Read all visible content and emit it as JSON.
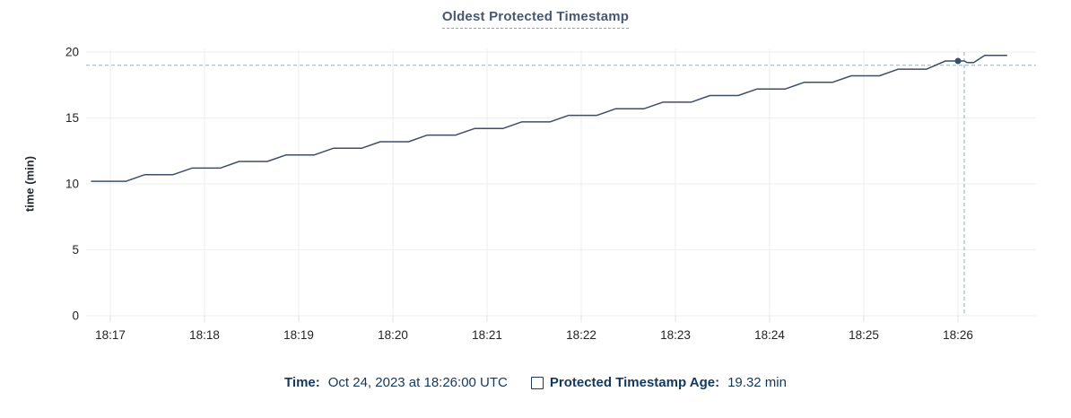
{
  "title": "Oldest Protected Timestamp",
  "y_axis": {
    "label": "time (min)"
  },
  "legend": {
    "time_label": "Time:",
    "time_value": "Oct 24, 2023 at 18:26:00 UTC",
    "series_label": "Protected Timestamp Age:",
    "series_value": "19.32 min",
    "checkbox_icon": "checkbox-unfilled-square"
  },
  "colors": {
    "line": "#3f4e67",
    "dot": "#3f4e67",
    "title": "#475872",
    "legend_text": "#14375d",
    "grid": "#eeeeee",
    "axis_stub": "#e0e0e0",
    "tick_text": "#242424",
    "crosshair": "#a4b8c7",
    "background": "#ffffff"
  },
  "chart_data": {
    "type": "line",
    "title": "Oldest Protected Timestamp",
    "xlabel": "",
    "ylabel": "time (min)",
    "ylim": [
      0,
      20
    ],
    "y_ticks": [
      0,
      5,
      10,
      15,
      20
    ],
    "x_ticks": [
      "18:17",
      "18:18",
      "18:19",
      "18:20",
      "18:21",
      "18:22",
      "18:23",
      "18:24",
      "18:25",
      "18:26"
    ],
    "x_range": [
      "18:16:48",
      "18:26:31"
    ],
    "grid": true,
    "legend_position": "bottom",
    "series": [
      {
        "name": "Protected Timestamp Age",
        "unit": "min",
        "points": [
          [
            "18:16:48",
            10.2
          ],
          [
            "18:17:10",
            10.2
          ],
          [
            "18:17:22",
            10.7
          ],
          [
            "18:17:40",
            10.7
          ],
          [
            "18:17:52",
            11.2
          ],
          [
            "18:18:10",
            11.2
          ],
          [
            "18:18:22",
            11.7
          ],
          [
            "18:18:40",
            11.7
          ],
          [
            "18:18:52",
            12.2
          ],
          [
            "18:19:10",
            12.2
          ],
          [
            "18:19:22",
            12.7
          ],
          [
            "18:19:40",
            12.7
          ],
          [
            "18:19:52",
            13.2
          ],
          [
            "18:20:10",
            13.2
          ],
          [
            "18:20:22",
            13.7
          ],
          [
            "18:20:40",
            13.7
          ],
          [
            "18:20:52",
            14.2
          ],
          [
            "18:21:10",
            14.2
          ],
          [
            "18:21:22",
            14.7
          ],
          [
            "18:21:40",
            14.7
          ],
          [
            "18:21:52",
            15.2
          ],
          [
            "18:22:10",
            15.2
          ],
          [
            "18:22:22",
            15.7
          ],
          [
            "18:22:40",
            15.7
          ],
          [
            "18:22:52",
            16.2
          ],
          [
            "18:23:10",
            16.2
          ],
          [
            "18:23:22",
            16.7
          ],
          [
            "18:23:40",
            16.7
          ],
          [
            "18:23:52",
            17.2
          ],
          [
            "18:24:10",
            17.2
          ],
          [
            "18:24:22",
            17.7
          ],
          [
            "18:24:40",
            17.7
          ],
          [
            "18:24:52",
            18.2
          ],
          [
            "18:25:10",
            18.2
          ],
          [
            "18:25:22",
            18.7
          ],
          [
            "18:25:40",
            18.7
          ],
          [
            "18:25:52",
            19.32
          ],
          [
            "18:26:04",
            19.32
          ],
          [
            "18:26:06",
            19.2
          ],
          [
            "18:26:10",
            19.2
          ],
          [
            "18:26:17",
            19.75
          ],
          [
            "18:26:31",
            19.75
          ]
        ]
      }
    ],
    "hover_point": {
      "time": "18:26:00",
      "value": 19.32
    },
    "crosshair": {
      "time": "18:26:04",
      "value": 19.0
    }
  }
}
